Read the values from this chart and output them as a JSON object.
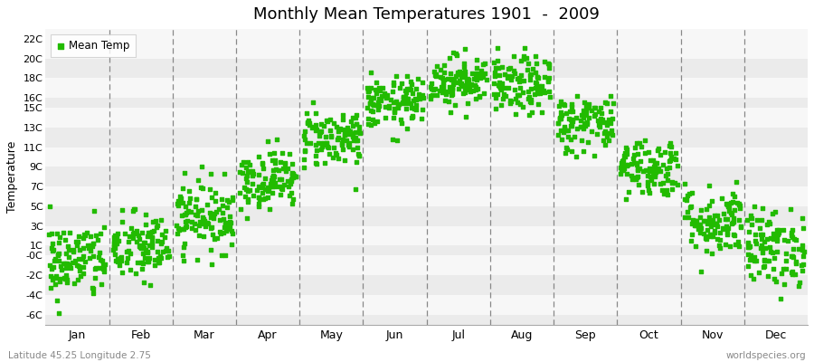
{
  "title": "Monthly Mean Temperatures 1901  -  2009",
  "ylabel": "Temperature",
  "xlabel_labels": [
    "Jan",
    "Feb",
    "Mar",
    "Apr",
    "May",
    "Jun",
    "Jul",
    "Aug",
    "Sep",
    "Oct",
    "Nov",
    "Dec"
  ],
  "subtitle": "Latitude 45.25 Longitude 2.75",
  "watermark": "worldspecies.org",
  "dot_color": "#22bb00",
  "fig_bg_color": "#ffffff",
  "plot_bg_light": "#ebebeb",
  "plot_bg_dark": "#f7f7f7",
  "ytick_labels": [
    "22C",
    "20C",
    "18C",
    "16C",
    "15C",
    "13C",
    "11C",
    "9C",
    "7C",
    "5C",
    "3C",
    "1C",
    "-0C",
    "-2C",
    "-4C",
    "-6C"
  ],
  "ytick_values": [
    22,
    20,
    18,
    16,
    15,
    13,
    11,
    9,
    7,
    5,
    3,
    1,
    0,
    -2,
    -4,
    -6
  ],
  "ylim": [
    -7.0,
    23.0
  ],
  "xlim": [
    0.0,
    12.0
  ],
  "monthly_means": [
    -0.5,
    0.8,
    4.0,
    7.8,
    12.0,
    15.5,
    17.8,
    17.2,
    13.5,
    9.0,
    3.5,
    0.8
  ],
  "monthly_stds": [
    2.0,
    1.8,
    1.8,
    1.5,
    1.5,
    1.3,
    1.3,
    1.5,
    1.5,
    1.5,
    1.8,
    2.0
  ],
  "n_years": 109,
  "legend_label": "Mean Temp",
  "dot_size": 5,
  "dot_marker": "s"
}
